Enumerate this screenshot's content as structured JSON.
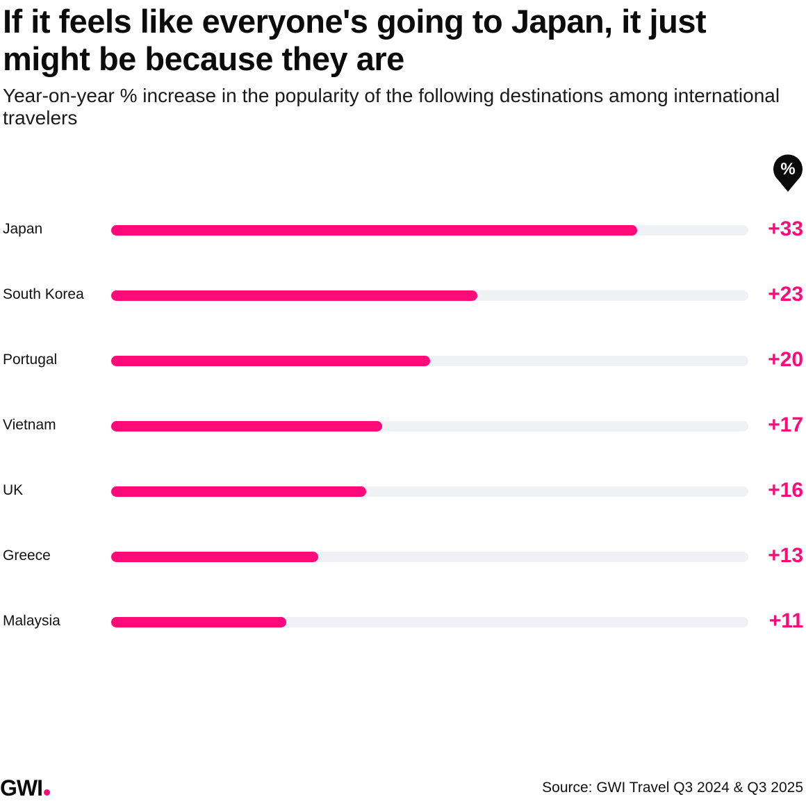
{
  "chart_data": {
    "type": "bar",
    "orientation": "horizontal",
    "title": "If it feels like everyone's going to Japan, it just might be because they are",
    "subtitle": "Year-on-year % increase in the popularity of the following destinations among international travelers",
    "unit_badge": "%",
    "categories": [
      "Japan",
      "South Korea",
      "Portugal",
      "Vietnam",
      "UK",
      "Greece",
      "Malaysia"
    ],
    "values": [
      33,
      23,
      20,
      17,
      16,
      13,
      11
    ],
    "value_labels": [
      "+33",
      "+23",
      "+20",
      "+17",
      "+16",
      "+13",
      "+11"
    ],
    "xlim": [
      0,
      40
    ],
    "grid": false,
    "legend": "none",
    "colors": {
      "bar": "#ff0a78",
      "track": "#eff1f5",
      "value_text": "#ff0a78"
    }
  },
  "branding": {
    "logo": "GWI",
    "logo_dot_color": "#ff0a78"
  },
  "footer": {
    "source": "Source: GWI Travel Q3 2024 & Q3 2025"
  }
}
